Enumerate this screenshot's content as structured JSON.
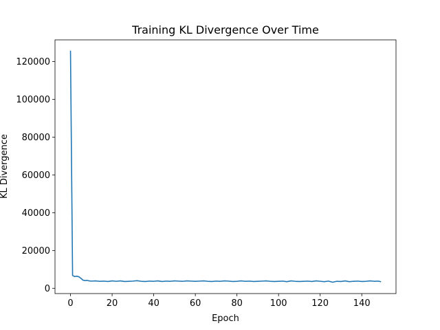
{
  "chart_data": {
    "type": "line",
    "title": "Training KL Divergence Over Time",
    "xlabel": "Epoch",
    "ylabel": "KL Divergence",
    "xlim": [
      -7.45,
      156.45
    ],
    "ylim": [
      -2800,
      131500
    ],
    "xticks": [
      0,
      20,
      40,
      60,
      80,
      100,
      120,
      140
    ],
    "yticks": [
      0,
      20000,
      40000,
      60000,
      80000,
      100000,
      120000
    ],
    "grid": false,
    "legend": "none",
    "series": [
      {
        "color": "#1f77b4",
        "x": [
          0,
          1,
          2,
          3,
          4,
          5,
          6,
          7,
          8,
          9,
          10,
          12,
          14,
          16,
          18,
          20,
          22,
          24,
          26,
          28,
          30,
          32,
          34,
          36,
          38,
          40,
          42,
          44,
          46,
          48,
          50,
          52,
          54,
          56,
          58,
          60,
          62,
          64,
          66,
          68,
          70,
          72,
          74,
          76,
          78,
          80,
          82,
          84,
          86,
          88,
          90,
          92,
          94,
          96,
          98,
          100,
          102,
          104,
          106,
          108,
          110,
          112,
          114,
          116,
          118,
          120,
          122,
          124,
          126,
          128,
          130,
          132,
          134,
          136,
          138,
          140,
          142,
          144,
          146,
          148,
          149
        ],
        "y": [
          125500,
          6800,
          6200,
          6400,
          6100,
          5300,
          4300,
          4100,
          4200,
          3900,
          3800,
          3900,
          3700,
          3800,
          3600,
          3900,
          3700,
          3900,
          3600,
          3700,
          3800,
          4000,
          3700,
          3600,
          3800,
          3700,
          3900,
          3600,
          3800,
          3700,
          3900,
          3800,
          3700,
          3900,
          3800,
          3700,
          3800,
          3900,
          3700,
          3600,
          3800,
          3700,
          3900,
          3800,
          3600,
          3700,
          3900,
          3700,
          3800,
          3600,
          3700,
          3800,
          3900,
          3700,
          3600,
          3700,
          3800,
          3500,
          3900,
          3700,
          3600,
          3700,
          3800,
          3600,
          3900,
          3700,
          3500,
          3800,
          3200,
          3700,
          3600,
          3900,
          3500,
          3700,
          3800,
          3600,
          3700,
          3900,
          3700,
          3800,
          3500
        ]
      }
    ]
  }
}
